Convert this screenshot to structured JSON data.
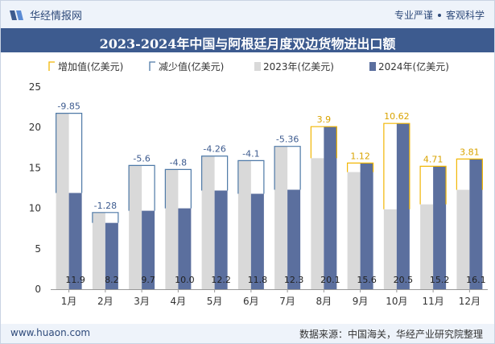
{
  "header": {
    "brand": "华经情报网",
    "tagline_left": "专业严谨",
    "tagline_right": "客观科学"
  },
  "footer": {
    "website": "www.huaon.com",
    "source": "数据来源：中国海关，华经产业研究院整理"
  },
  "colors": {
    "series_2023": "#d9d9d9",
    "series_2024": "#5b6f9e",
    "increase": "#f2b705",
    "decrease": "#4e79a7",
    "title_bar": "#3d5b8f"
  },
  "chart_data": {
    "type": "bar",
    "title": "2023-2024年中国与阿根廷月度双边货物进出口额",
    "categories": [
      "1月",
      "2月",
      "3月",
      "4月",
      "5月",
      "6月",
      "7月",
      "8月",
      "9月",
      "10月",
      "11月",
      "12月"
    ],
    "series": [
      {
        "name": "2023年(亿美元)",
        "values": [
          21.75,
          9.48,
          15.3,
          14.8,
          16.46,
          15.9,
          17.66,
          16.2,
          14.48,
          9.88,
          10.49,
          12.29
        ]
      },
      {
        "name": "2024年(亿美元)",
        "values": [
          11.9,
          8.2,
          9.7,
          10.0,
          12.2,
          11.8,
          12.3,
          20.1,
          15.6,
          20.5,
          15.2,
          16.1
        ]
      }
    ],
    "change_labels": [
      "-9.85",
      "-1.28",
      "-5.6",
      "-4.8",
      "-4.26",
      "-4.1",
      "-5.36",
      "3.9",
      "1.12",
      "10.62",
      "4.71",
      "3.81"
    ],
    "value_labels_2024": [
      "11.9",
      "8.2",
      "9.7",
      "10.0",
      "12.2",
      "11.8",
      "12.3",
      "20.1",
      "15.6",
      "20.5",
      "15.2",
      "16.1"
    ],
    "legend": [
      "增加值(亿美元)",
      "减少值(亿美元)",
      "2023年(亿美元)",
      "2024年(亿美元)"
    ],
    "legend_position": "top",
    "y_ticks": [
      "0",
      "5",
      "10",
      "15",
      "20",
      "25"
    ],
    "ylim": [
      0,
      25
    ],
    "grid": false
  }
}
